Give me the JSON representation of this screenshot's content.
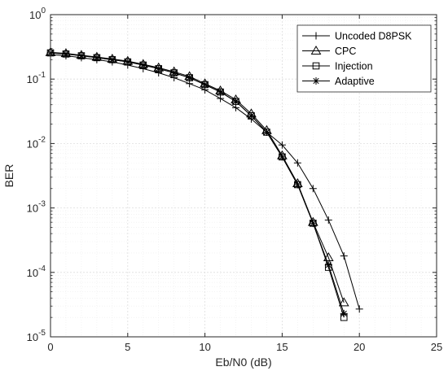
{
  "chart_data": {
    "type": "line",
    "title": "",
    "xlabel": "Eb/N0 (dB)",
    "ylabel": "BER",
    "xlim": [
      0,
      25
    ],
    "ylim": [
      1e-05,
      1
    ],
    "yscale": "log",
    "grid": true,
    "minor_grid": true,
    "legend_position": "top-right",
    "x_ticks": [
      0,
      5,
      10,
      15,
      20,
      25
    ],
    "y_ticks": [
      {
        "value": 1,
        "base": "10",
        "exp": "0"
      },
      {
        "value": 0.1,
        "base": "10",
        "exp": "-1"
      },
      {
        "value": 0.01,
        "base": "10",
        "exp": "-2"
      },
      {
        "value": 0.001,
        "base": "10",
        "exp": "-3"
      },
      {
        "value": 0.0001,
        "base": "10",
        "exp": "-4"
      },
      {
        "value": 1e-05,
        "base": "10",
        "exp": "-5"
      }
    ],
    "series": [
      {
        "name": "Uncoded D8PSK",
        "marker": "plus",
        "x": [
          0,
          1,
          2,
          3,
          4,
          5,
          6,
          7,
          8,
          9,
          10,
          11,
          12,
          13,
          14,
          15,
          16,
          17,
          18,
          19,
          20
        ],
        "values": [
          0.24,
          0.23,
          0.215,
          0.2,
          0.185,
          0.165,
          0.145,
          0.125,
          0.105,
          0.085,
          0.068,
          0.05,
          0.036,
          0.024,
          0.015,
          0.0095,
          0.005,
          0.002,
          0.00065,
          0.00018,
          2.7e-05
        ]
      },
      {
        "name": "CPC",
        "marker": "triangle",
        "x": [
          0,
          1,
          2,
          3,
          4,
          5,
          6,
          7,
          8,
          9,
          10,
          11,
          12,
          13,
          14,
          15,
          16,
          17,
          18,
          19
        ],
        "values": [
          0.26,
          0.25,
          0.235,
          0.22,
          0.205,
          0.19,
          0.17,
          0.15,
          0.13,
          0.11,
          0.085,
          0.066,
          0.048,
          0.029,
          0.016,
          0.0065,
          0.0024,
          0.0006,
          0.00017,
          3.4e-05
        ]
      },
      {
        "name": "Injection",
        "marker": "square",
        "x": [
          0,
          1,
          2,
          3,
          4,
          5,
          6,
          7,
          8,
          9,
          10,
          11,
          12,
          13,
          14,
          15,
          16,
          17,
          18,
          19
        ],
        "values": [
          0.255,
          0.245,
          0.23,
          0.215,
          0.2,
          0.185,
          0.165,
          0.145,
          0.125,
          0.105,
          0.082,
          0.063,
          0.045,
          0.027,
          0.015,
          0.0062,
          0.0023,
          0.00058,
          0.00012,
          2e-05
        ]
      },
      {
        "name": "Adaptive",
        "marker": "asterisk",
        "x": [
          0,
          1,
          2,
          3,
          4,
          5,
          6,
          7,
          8,
          9,
          10,
          11,
          12,
          13,
          14,
          15,
          16,
          17,
          18,
          19
        ],
        "values": [
          0.255,
          0.245,
          0.23,
          0.215,
          0.2,
          0.185,
          0.165,
          0.145,
          0.125,
          0.105,
          0.082,
          0.063,
          0.045,
          0.027,
          0.015,
          0.0062,
          0.0023,
          0.00058,
          0.00013,
          2.3e-05
        ]
      }
    ],
    "colors": {
      "line": "#000000",
      "axes": "#262626",
      "grid": "#dedede",
      "minor_grid": "#ececec",
      "background": "#ffffff"
    }
  }
}
